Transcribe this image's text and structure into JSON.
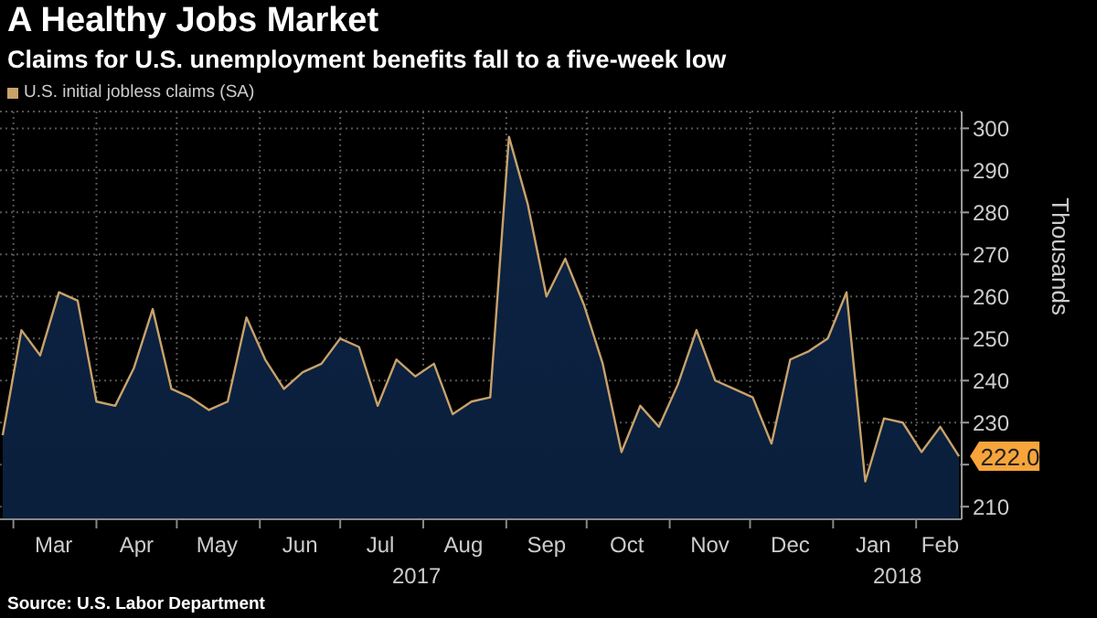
{
  "chart_data": {
    "type": "area",
    "title": "A Healthy Jobs Market",
    "subtitle": "Claims for U.S. unemployment benefits fall to a five-week low",
    "ylabel": "Thousands",
    "x": [
      "2017-02-25",
      "2017-03-04",
      "2017-03-11",
      "2017-03-18",
      "2017-03-25",
      "2017-04-01",
      "2017-04-08",
      "2017-04-15",
      "2017-04-22",
      "2017-04-29",
      "2017-05-06",
      "2017-05-13",
      "2017-05-20",
      "2017-05-27",
      "2017-06-03",
      "2017-06-10",
      "2017-06-17",
      "2017-06-24",
      "2017-07-01",
      "2017-07-08",
      "2017-07-15",
      "2017-07-22",
      "2017-07-29",
      "2017-08-05",
      "2017-08-12",
      "2017-08-19",
      "2017-08-26",
      "2017-09-02",
      "2017-09-09",
      "2017-09-16",
      "2017-09-23",
      "2017-09-30",
      "2017-10-07",
      "2017-10-14",
      "2017-10-21",
      "2017-10-28",
      "2017-11-04",
      "2017-11-11",
      "2017-11-18",
      "2017-11-25",
      "2017-12-02",
      "2017-12-09",
      "2017-12-16",
      "2017-12-23",
      "2017-12-30",
      "2018-01-06",
      "2018-01-13",
      "2018-01-20",
      "2018-01-27",
      "2018-02-03",
      "2018-02-10",
      "2018-02-17"
    ],
    "series": [
      {
        "name": "U.S. initial jobless claims (SA)",
        "color": "#c8a26a",
        "values": [
          227,
          252,
          246,
          261,
          259,
          235,
          234,
          243,
          257,
          238,
          236,
          233,
          235,
          255,
          245,
          238,
          242,
          244,
          250,
          248,
          234,
          245,
          241,
          244,
          232,
          235,
          236,
          298,
          282,
          260,
          269,
          258,
          244,
          223,
          234,
          229,
          239,
          252,
          240,
          238,
          236,
          225,
          245,
          247,
          250,
          261,
          216,
          231,
          230,
          223,
          229,
          222
        ],
        "value_labels": [
          null,
          null,
          null,
          null,
          null,
          null,
          null,
          null,
          null,
          null,
          null,
          null,
          null,
          null,
          null,
          null,
          null,
          null,
          null,
          null,
          null,
          null,
          null,
          null,
          null,
          null,
          null,
          null,
          null,
          null,
          null,
          null,
          null,
          null,
          null,
          null,
          null,
          null,
          null,
          null,
          null,
          null,
          null,
          null,
          null,
          null,
          null,
          null,
          null,
          null,
          null,
          "222.0"
        ]
      }
    ],
    "xlim": [
      "2017-02-24",
      "2018-02-18"
    ],
    "xticks": [
      {
        "value": "2017-03-01",
        "label": null
      },
      {
        "value": "2017-03-16",
        "label": "Mar"
      },
      {
        "value": "2017-04-01",
        "label": null
      },
      {
        "value": "2017-04-16",
        "label": "Apr"
      },
      {
        "value": "2017-05-01",
        "label": null
      },
      {
        "value": "2017-05-16",
        "label": "May"
      },
      {
        "value": "2017-06-01",
        "label": null
      },
      {
        "value": "2017-06-16",
        "label": "Jun"
      },
      {
        "value": "2017-07-01",
        "label": null
      },
      {
        "value": "2017-07-16",
        "label": "Jul"
      },
      {
        "value": "2017-08-01",
        "label": null
      },
      {
        "value": "2017-08-16",
        "label": "Aug"
      },
      {
        "value": "2017-09-01",
        "label": null
      },
      {
        "value": "2017-09-16",
        "label": "Sep"
      },
      {
        "value": "2017-10-01",
        "label": null
      },
      {
        "value": "2017-10-16",
        "label": "Oct"
      },
      {
        "value": "2017-11-01",
        "label": null
      },
      {
        "value": "2017-11-16",
        "label": "Nov"
      },
      {
        "value": "2017-12-01",
        "label": null
      },
      {
        "value": "2017-12-16",
        "label": "Dec"
      },
      {
        "value": "2018-01-01",
        "label": null
      },
      {
        "value": "2018-01-16",
        "label": "Jan"
      },
      {
        "value": "2018-02-01",
        "label": null
      },
      {
        "value": "2018-02-10",
        "label": "Feb"
      }
    ],
    "ylim": [
      207,
      304
    ],
    "yticks": [
      210,
      {
        "value": 220,
        "label": null
      },
      230,
      240,
      250,
      260,
      270,
      280,
      290,
      300
    ],
    "grid": true,
    "legend": "top left",
    "annotations": [
      "2017",
      "2018",
      "Source: U.S. Labor Department"
    ]
  }
}
